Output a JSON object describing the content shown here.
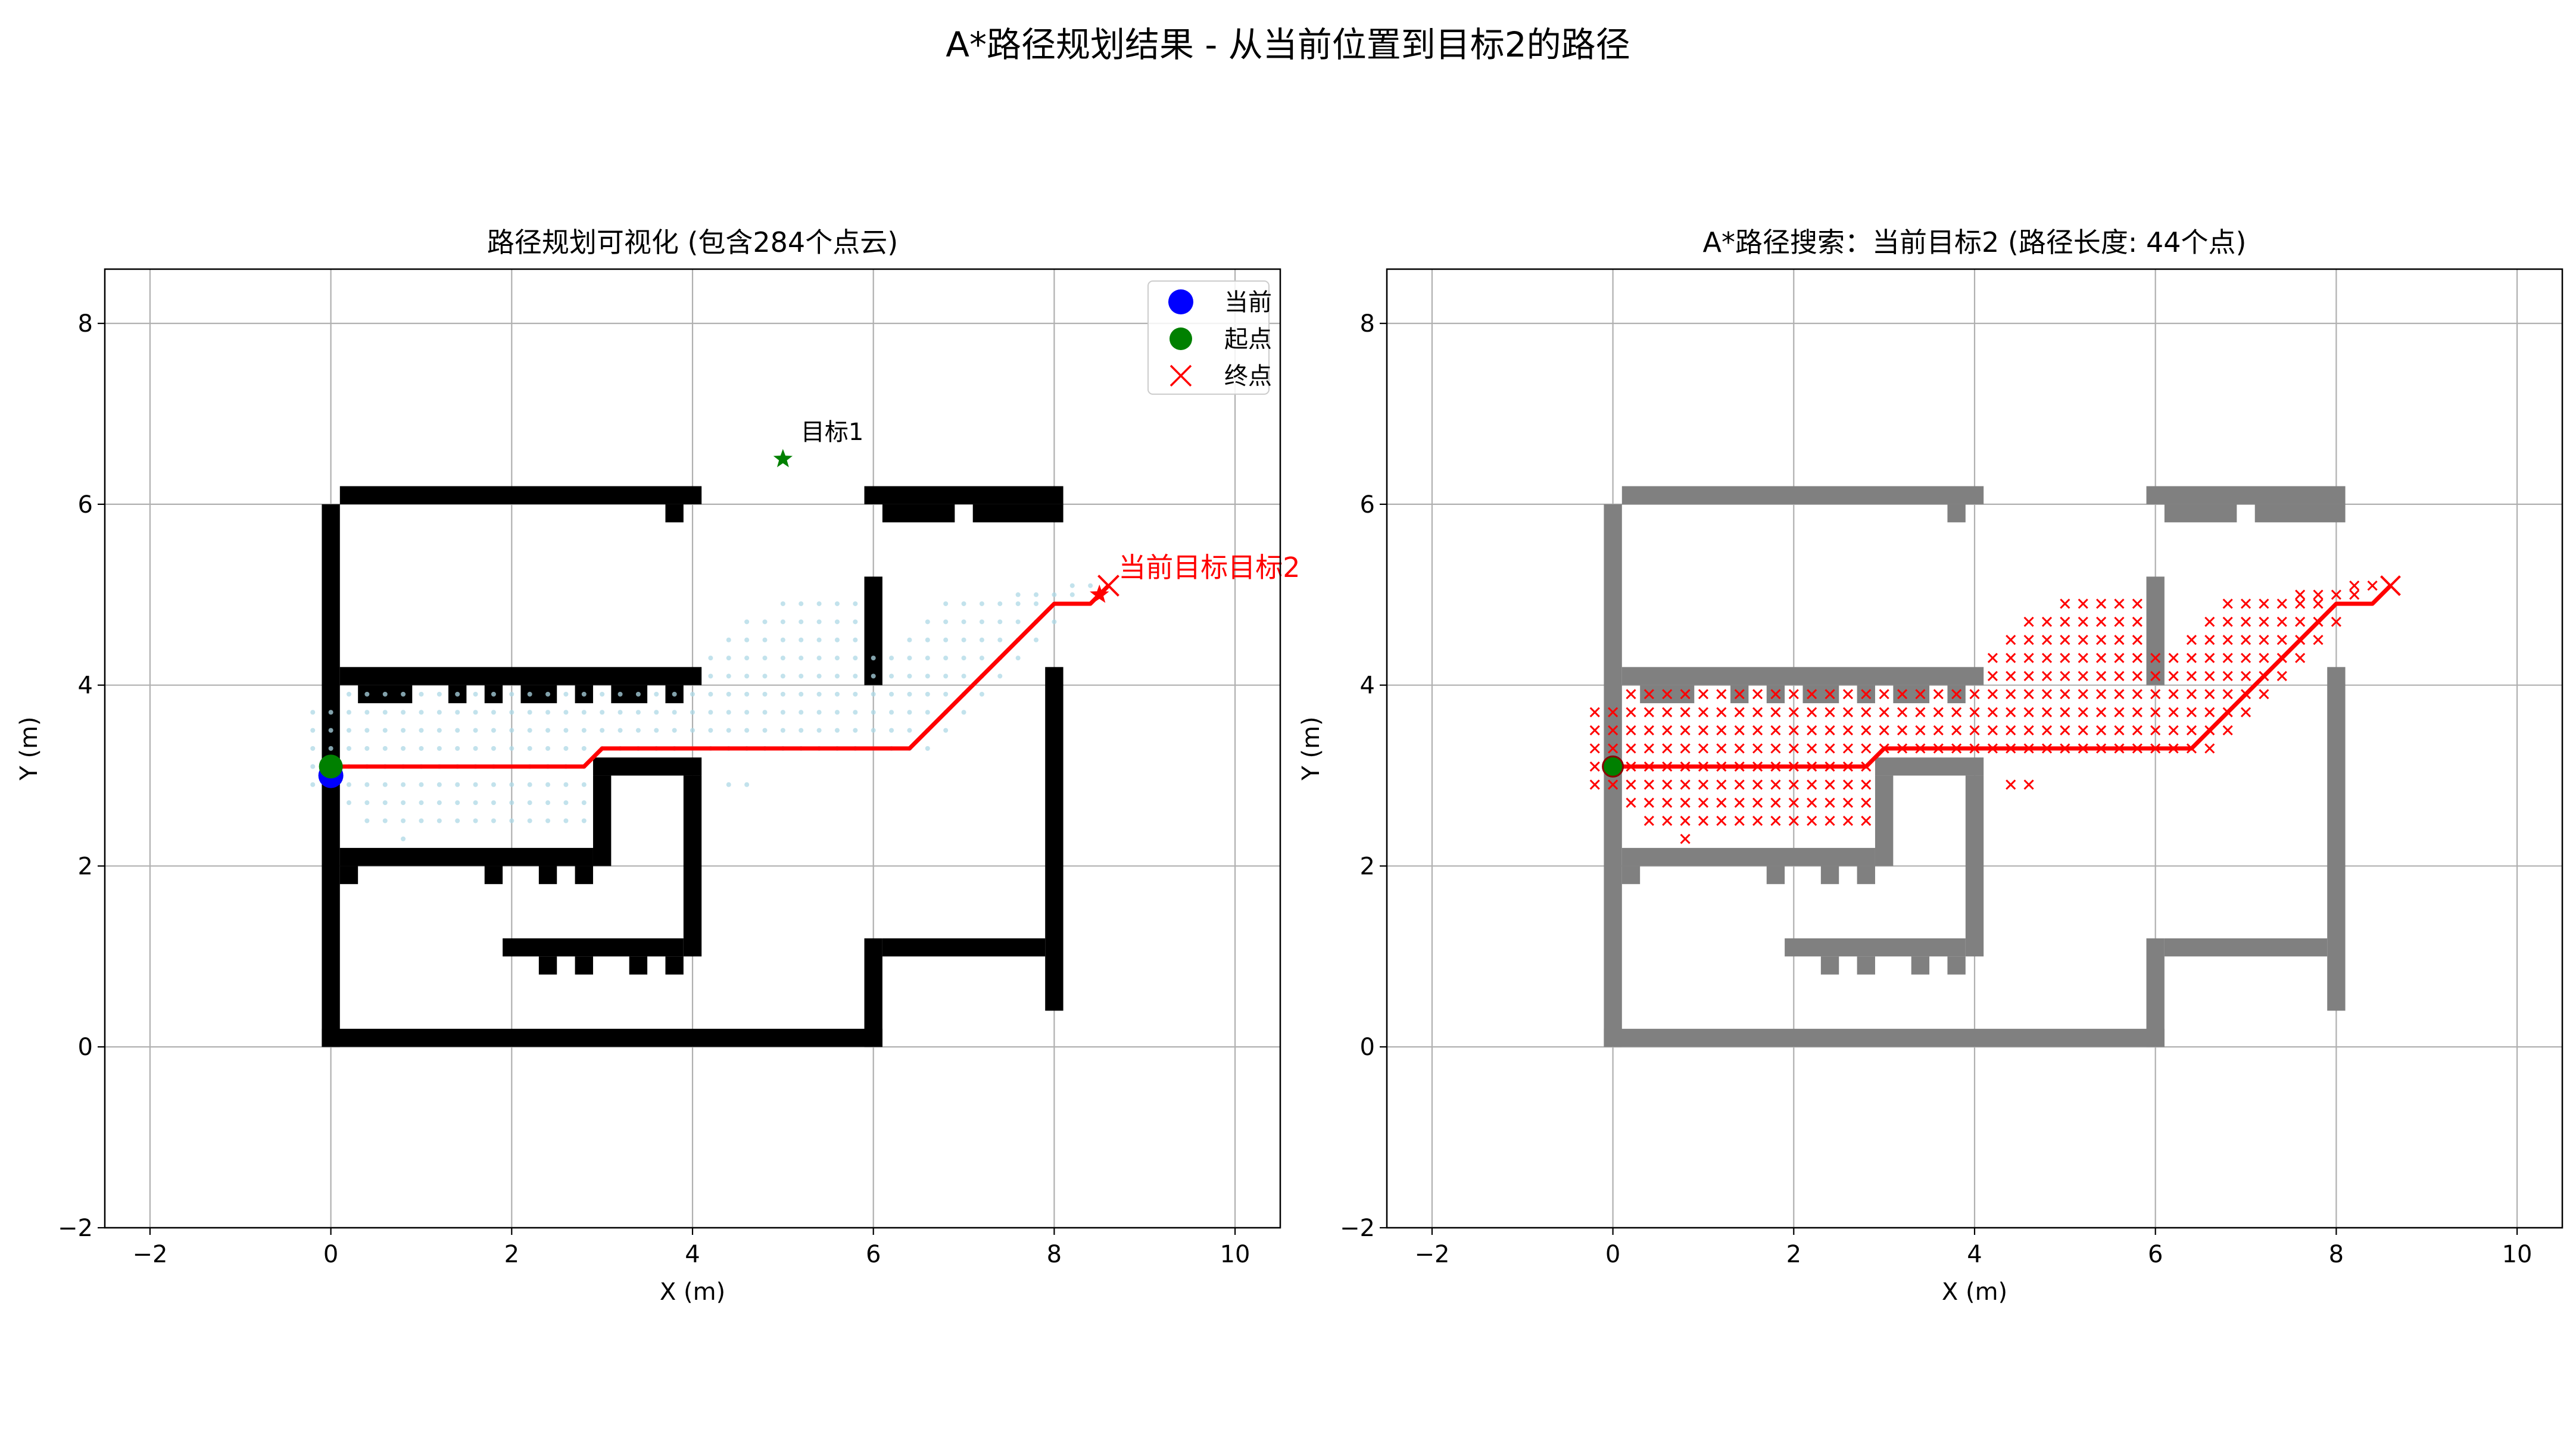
{
  "suptitle": "A*路径规划结果 - 从当前位置到目标2的路径",
  "chart_data": [
    {
      "type": "scatter",
      "title": "路径规划可视化 (包含284个点云)",
      "xlabel": "X (m)",
      "ylabel": "Y (m)",
      "xlim": [
        -2.5,
        10.5
      ],
      "ylim": [
        -2,
        8.6
      ],
      "xticks": [
        "−2",
        "0",
        "2",
        "4",
        "6",
        "8",
        "10"
      ],
      "yticks": [
        "−2",
        "0",
        "2",
        "4",
        "6",
        "8"
      ],
      "grid": true,
      "legend": {
        "placement": "upper right",
        "entries": [
          {
            "label": "当前",
            "marker": "circle",
            "color": "#0000ff"
          },
          {
            "label": "起点",
            "marker": "circle",
            "color": "#008000"
          },
          {
            "label": "终点",
            "marker": "x",
            "color": "#ff0000"
          }
        ]
      },
      "current_position": [
        0,
        3.0
      ],
      "start": [
        0,
        3.1
      ],
      "end": [
        8.6,
        5.1
      ],
      "targets": [
        {
          "label": "目标1",
          "x": 5.0,
          "y": 6.5,
          "color": "#008000"
        },
        {
          "label": "当前目标目标2",
          "x": 8.5,
          "y": 5.0,
          "color": "#ff0000"
        }
      ],
      "path": [
        [
          0,
          3.1
        ],
        [
          2.8,
          3.1
        ],
        [
          3.0,
          3.3
        ],
        [
          6.4,
          3.3
        ],
        [
          8.0,
          4.9
        ],
        [
          8.4,
          4.9
        ],
        [
          8.6,
          5.1
        ]
      ],
      "point_cloud_count": 284,
      "point_cloud_color": "#add8e6"
    },
    {
      "type": "scatter",
      "title": "A*路径搜索：当前目标2 (路径长度: 44个点)",
      "xlabel": "X (m)",
      "ylabel": "Y (m)",
      "xlim": [
        -2.5,
        10.5
      ],
      "ylim": [
        -2,
        8.6
      ],
      "xticks": [
        "−2",
        "0",
        "2",
        "4",
        "6",
        "8",
        "10"
      ],
      "yticks": [
        "−2",
        "0",
        "2",
        "4",
        "6",
        "8"
      ],
      "grid": true,
      "start": [
        0,
        3.1
      ],
      "end": [
        8.6,
        5.1
      ],
      "path_length": 44,
      "path": [
        [
          0,
          3.1
        ],
        [
          2.8,
          3.1
        ],
        [
          3.0,
          3.3
        ],
        [
          6.4,
          3.3
        ],
        [
          8.0,
          4.9
        ],
        [
          8.4,
          4.9
        ],
        [
          8.6,
          5.1
        ]
      ],
      "explored_marker": "x",
      "explored_color": "#ff0000"
    }
  ],
  "obstacles": [
    {
      "x0": -0.1,
      "x1": 0.1,
      "y0": 0.0,
      "y1": 6.0
    },
    {
      "x0": 0.1,
      "x1": 4.1,
      "y0": 6.0,
      "y1": 6.2
    },
    {
      "x0": 3.7,
      "x1": 3.9,
      "y0": 5.8,
      "y1": 6.0
    },
    {
      "x0": 5.9,
      "x1": 8.1,
      "y0": 6.0,
      "y1": 6.2
    },
    {
      "x0": 6.1,
      "x1": 6.9,
      "y0": 5.8,
      "y1": 6.0
    },
    {
      "x0": 7.1,
      "x1": 8.1,
      "y0": 5.8,
      "y1": 6.0
    },
    {
      "x0": 5.9,
      "x1": 6.1,
      "y0": 4.0,
      "y1": 5.2
    },
    {
      "x0": 0.1,
      "x1": 4.1,
      "y0": 4.0,
      "y1": 4.2
    },
    {
      "x0": 0.3,
      "x1": 0.9,
      "y0": 3.8,
      "y1": 4.0
    },
    {
      "x0": 1.3,
      "x1": 1.5,
      "y0": 3.8,
      "y1": 4.0
    },
    {
      "x0": 1.7,
      "x1": 1.9,
      "y0": 3.8,
      "y1": 4.0
    },
    {
      "x0": 2.1,
      "x1": 2.5,
      "y0": 3.8,
      "y1": 4.0
    },
    {
      "x0": 2.7,
      "x1": 2.9,
      "y0": 3.8,
      "y1": 4.0
    },
    {
      "x0": 3.1,
      "x1": 3.5,
      "y0": 3.8,
      "y1": 4.0
    },
    {
      "x0": 3.7,
      "x1": 3.9,
      "y0": 3.8,
      "y1": 4.0
    },
    {
      "x0": 7.9,
      "x1": 8.1,
      "y0": 0.4,
      "y1": 4.2
    },
    {
      "x0": 2.9,
      "x1": 4.1,
      "y0": 3.0,
      "y1": 3.2
    },
    {
      "x0": 2.9,
      "x1": 3.1,
      "y0": 2.0,
      "y1": 3.0
    },
    {
      "x0": 3.9,
      "x1": 4.1,
      "y0": 1.0,
      "y1": 3.0
    },
    {
      "x0": 0.1,
      "x1": 2.9,
      "y0": 2.0,
      "y1": 2.2
    },
    {
      "x0": 0.1,
      "x1": 0.3,
      "y0": 1.8,
      "y1": 2.0
    },
    {
      "x0": 1.7,
      "x1": 1.9,
      "y0": 1.8,
      "y1": 2.0
    },
    {
      "x0": 2.3,
      "x1": 2.5,
      "y0": 1.8,
      "y1": 2.0
    },
    {
      "x0": 2.7,
      "x1": 2.9,
      "y0": 1.8,
      "y1": 2.0
    },
    {
      "x0": 1.9,
      "x1": 3.9,
      "y0": 1.0,
      "y1": 1.2
    },
    {
      "x0": 2.3,
      "x1": 2.5,
      "y0": 0.8,
      "y1": 1.0
    },
    {
      "x0": 2.7,
      "x1": 2.9,
      "y0": 0.8,
      "y1": 1.0
    },
    {
      "x0": 3.3,
      "x1": 3.5,
      "y0": 0.8,
      "y1": 1.0
    },
    {
      "x0": 3.7,
      "x1": 3.9,
      "y0": 0.8,
      "y1": 1.0
    },
    {
      "x0": 5.9,
      "x1": 6.1,
      "y0": 0.0,
      "y1": 1.2
    },
    {
      "x0": 6.1,
      "x1": 7.9,
      "y0": 1.0,
      "y1": 1.2
    },
    {
      "x0": -0.1,
      "x1": 6.1,
      "y0": 0.0,
      "y1": 0.2
    }
  ],
  "explored_region": [
    {
      "y": 5.1,
      "x0": 8.2,
      "x1": 8.4
    },
    {
      "y": 5.0,
      "x0": 7.6,
      "x1": 8.2
    },
    {
      "y": 4.9,
      "x0": 5.0,
      "x1": 5.8
    },
    {
      "y": 4.9,
      "x0": 6.8,
      "x1": 7.8
    },
    {
      "y": 4.7,
      "x0": 4.6,
      "x1": 5.8
    },
    {
      "y": 4.7,
      "x0": 6.6,
      "x1": 8.0
    },
    {
      "y": 4.5,
      "x0": 4.4,
      "x1": 5.8
    },
    {
      "y": 4.5,
      "x0": 6.4,
      "x1": 7.8
    },
    {
      "y": 4.3,
      "x0": 4.2,
      "x1": 7.6
    },
    {
      "y": 4.1,
      "x0": 4.2,
      "x1": 7.4
    },
    {
      "y": 3.9,
      "x0": 0.2,
      "x1": 7.2
    },
    {
      "y": 3.7,
      "x0": -0.2,
      "x1": 7.0
    },
    {
      "y": 3.5,
      "x0": -0.2,
      "x1": 6.8
    },
    {
      "y": 3.3,
      "x0": -0.2,
      "x1": 6.6
    },
    {
      "y": 3.1,
      "x0": -0.2,
      "x1": 2.8
    },
    {
      "y": 2.9,
      "x0": -0.2,
      "x1": 2.8
    },
    {
      "y": 2.9,
      "x0": 4.4,
      "x1": 4.6
    },
    {
      "y": 2.7,
      "x0": 0.2,
      "x1": 2.8
    },
    {
      "y": 2.5,
      "x0": 0.4,
      "x1": 2.8
    },
    {
      "y": 2.3,
      "x0": 0.8,
      "x1": 0.8
    }
  ]
}
